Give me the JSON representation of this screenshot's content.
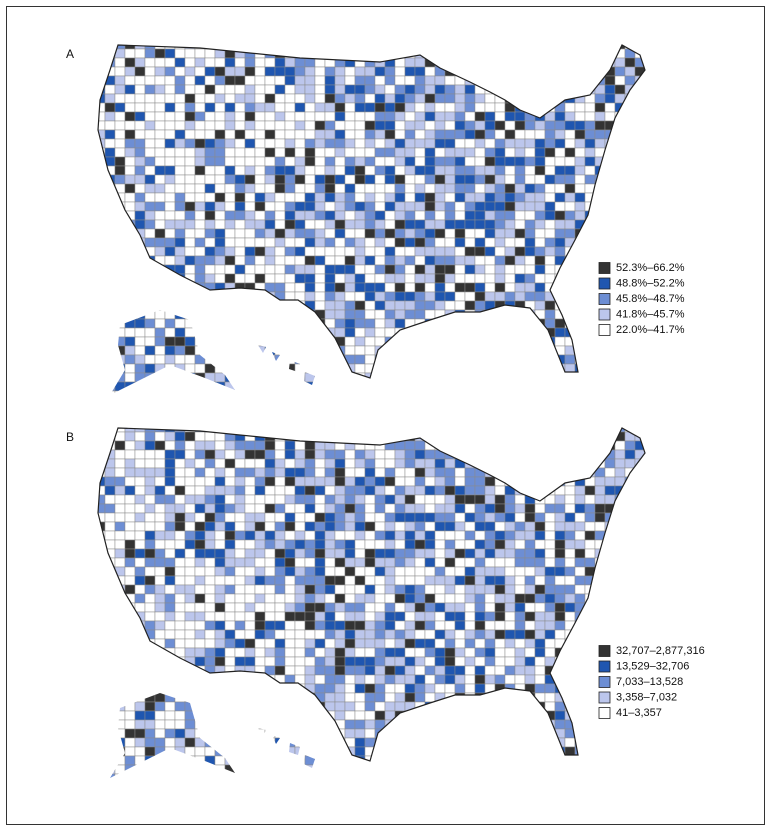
{
  "panels": [
    {
      "label": "A",
      "legend": [
        {
          "label": "52.3%–66.2%",
          "color": "#333333"
        },
        {
          "label": "48.8%–52.2%",
          "color": "#1f56b0"
        },
        {
          "label": "45.8%–48.7%",
          "color": "#6d8ed4"
        },
        {
          "label": "41.8%–45.7%",
          "color": "#bcc6ec"
        },
        {
          "label": "22.0%–41.7%",
          "color": "#ffffff"
        }
      ]
    },
    {
      "label": "B",
      "legend": [
        {
          "label": "32,707–2,877,316",
          "color": "#333333"
        },
        {
          "label": "13,529–32,706",
          "color": "#1f56b0"
        },
        {
          "label": "7,033–13,528",
          "color": "#6d8ed4"
        },
        {
          "label": "3,358–7,032",
          "color": "#bcc6ec"
        },
        {
          "label": "41–3,357",
          "color": "#ffffff"
        }
      ]
    }
  ]
}
